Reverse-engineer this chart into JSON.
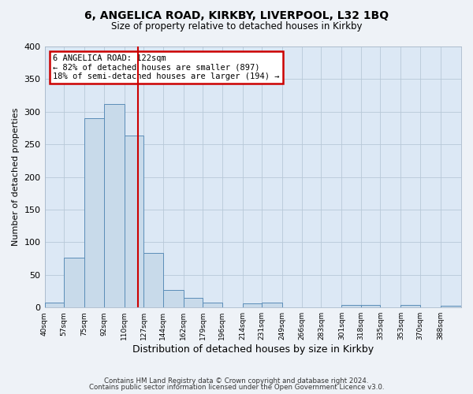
{
  "title": "6, ANGELICA ROAD, KIRKBY, LIVERPOOL, L32 1BQ",
  "subtitle": "Size of property relative to detached houses in Kirkby",
  "xlabel": "Distribution of detached houses by size in Kirkby",
  "ylabel": "Number of detached properties",
  "bin_labels": [
    "40sqm",
    "57sqm",
    "75sqm",
    "92sqm",
    "110sqm",
    "127sqm",
    "144sqm",
    "162sqm",
    "179sqm",
    "196sqm",
    "214sqm",
    "231sqm",
    "249sqm",
    "266sqm",
    "283sqm",
    "301sqm",
    "318sqm",
    "335sqm",
    "353sqm",
    "370sqm",
    "388sqm"
  ],
  "bin_edges": [
    40,
    57,
    75,
    92,
    110,
    127,
    144,
    162,
    179,
    196,
    214,
    231,
    249,
    266,
    283,
    301,
    318,
    335,
    353,
    370,
    388
  ],
  "bar_heights": [
    8,
    76,
    290,
    312,
    263,
    84,
    27,
    15,
    8,
    0,
    6,
    8,
    0,
    0,
    0,
    4,
    4,
    0,
    4,
    0,
    3
  ],
  "bar_face_color": "#c8daea",
  "bar_edge_color": "#5b8db8",
  "vline_x": 122,
  "vline_color": "#cc0000",
  "annotation_title": "6 ANGELICA ROAD: 122sqm",
  "annotation_line1": "← 82% of detached houses are smaller (897)",
  "annotation_line2": "18% of semi-detached houses are larger (194) →",
  "annotation_box_edge_color": "#cc0000",
  "ylim": [
    0,
    400
  ],
  "yticks": [
    0,
    50,
    100,
    150,
    200,
    250,
    300,
    350,
    400
  ],
  "footer1": "Contains HM Land Registry data © Crown copyright and database right 2024.",
  "footer2": "Contains public sector information licensed under the Open Government Licence v3.0.",
  "fig_bg_color": "#eef2f7",
  "plot_bg_color": "#dce8f5",
  "grid_color": "#b8c8d8"
}
